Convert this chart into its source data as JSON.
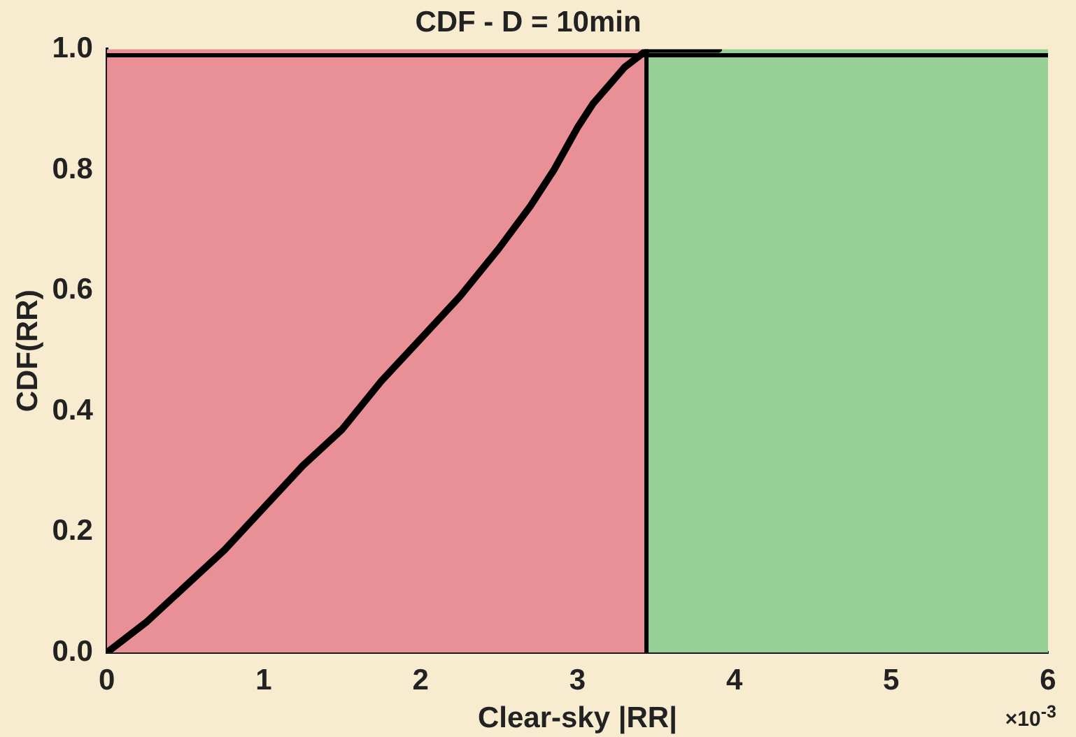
{
  "chart_data": {
    "type": "line",
    "title": "CDF - D = 10min",
    "xlabel": "Clear-sky |RR|",
    "ylabel": "CDF(RR)",
    "x": [
      0,
      0.25,
      0.5,
      0.75,
      1,
      1.25,
      1.5,
      1.75,
      2,
      2.25,
      2.5,
      2.7,
      2.85,
      3.0,
      3.1,
      3.2,
      3.3,
      3.4,
      3.45,
      3.6,
      3.9
    ],
    "series": [
      {
        "color": "#000000",
        "values": [
          0,
          0.05,
          0.11,
          0.17,
          0.24,
          0.31,
          0.37,
          0.45,
          0.52,
          0.59,
          0.67,
          0.74,
          0.8,
          0.87,
          0.91,
          0.94,
          0.97,
          0.99,
          1.0,
          1.0,
          1.0
        ]
      }
    ],
    "xlim": [
      0,
      6
    ],
    "ylim": [
      0,
      1
    ],
    "xticks": [
      0,
      1,
      2,
      3,
      4,
      5,
      6
    ],
    "yticks": [
      {
        "value": 0,
        "label": "0.0"
      },
      {
        "value": 0.2,
        "label": "0.2"
      },
      {
        "value": 0.4,
        "label": "0.4"
      },
      {
        "value": 0.6,
        "label": "0.6"
      },
      {
        "value": 0.8,
        "label": "0.8"
      },
      {
        "value": 1,
        "label": "1.0"
      }
    ],
    "bands": [
      {
        "axis": "x",
        "from": 0,
        "to": 3.44,
        "color": "#e89095"
      },
      {
        "axis": "x",
        "from": 3.44,
        "to": 6,
        "color": "#96d096"
      }
    ],
    "ref_lines": [
      {
        "axis": "x",
        "value": 3.44,
        "color": "#000000"
      },
      {
        "axis": "y",
        "value": 0.99,
        "color": "#000000"
      }
    ],
    "annotations": [
      "×10$^{-3}$"
    ],
    "grid": false,
    "legend": false,
    "marker": "none",
    "line_style": "solid"
  }
}
